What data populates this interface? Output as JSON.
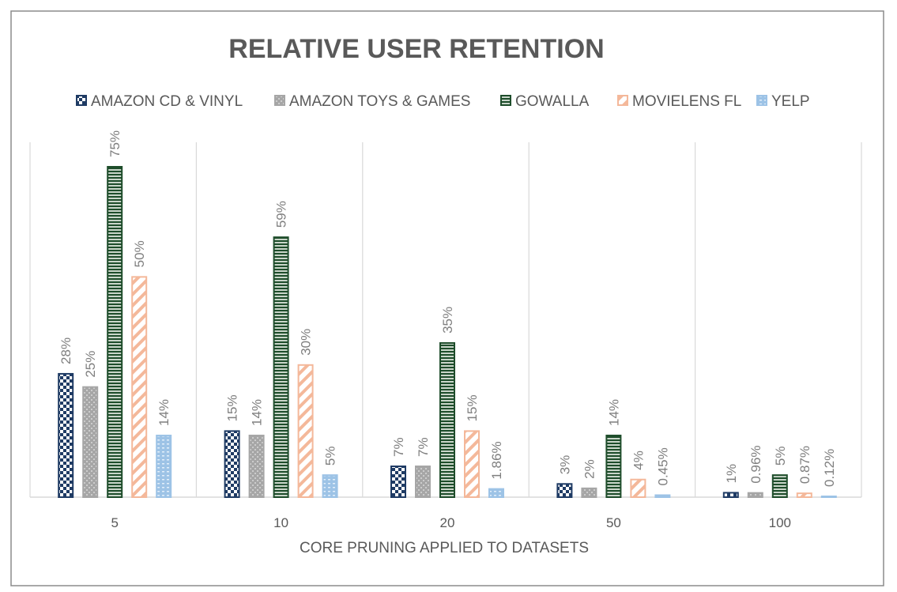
{
  "chart_data": {
    "type": "bar",
    "title": "RELATIVE USER RETENTION",
    "xlabel": "CORE PRUNING APPLIED TO DATASETS",
    "ylabel": "",
    "ylim": [
      0,
      80
    ],
    "grid": "vertical separators between categories",
    "legend_position": "top",
    "categories": [
      "5",
      "10",
      "20",
      "50",
      "100"
    ],
    "series": [
      {
        "name": "AMAZON CD & VINYL",
        "color": "#1f3b64",
        "pattern": "checker",
        "values": [
          28,
          15,
          7,
          3,
          1
        ],
        "labels": [
          "28%",
          "15%",
          "7%",
          "3%",
          "1%"
        ]
      },
      {
        "name": "AMAZON TOYS & GAMES",
        "color": "#a6a6a6",
        "pattern": "dots",
        "values": [
          25,
          14,
          7,
          2,
          0.96
        ],
        "labels": [
          "25%",
          "14%",
          "7%",
          "2%",
          "0.96%"
        ]
      },
      {
        "name": "GOWALLA",
        "color": "#1e4d2b",
        "pattern": "hstripes",
        "values": [
          75,
          59,
          35,
          14,
          5
        ],
        "labels": [
          "75%",
          "59%",
          "35%",
          "14%",
          "5%"
        ]
      },
      {
        "name": "MOVIELENS FL",
        "color": "#f4b89a",
        "pattern": "diagonal",
        "values": [
          50,
          30,
          15,
          4,
          0.87
        ],
        "labels": [
          "50%",
          "30%",
          "15%",
          "4%",
          "0.87%"
        ]
      },
      {
        "name": "YELP",
        "color": "#9dc3e6",
        "pattern": "lightdots",
        "values": [
          14,
          5,
          1.86,
          0.45,
          0.12
        ],
        "labels": [
          "14%",
          "5%",
          "1.86%",
          "0.45%",
          "0.12%"
        ]
      }
    ]
  }
}
